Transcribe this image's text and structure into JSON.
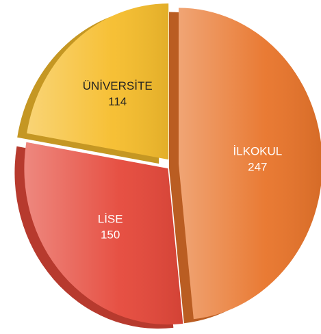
{
  "chart_data": {
    "type": "pie",
    "categories": [
      "İLKOKUL",
      "LİSE",
      "ÜNİVERSİTE"
    ],
    "values": [
      247,
      150,
      114
    ],
    "colors": [
      "#e8742a",
      "#e5483a",
      "#f6bd2c"
    ]
  }
}
